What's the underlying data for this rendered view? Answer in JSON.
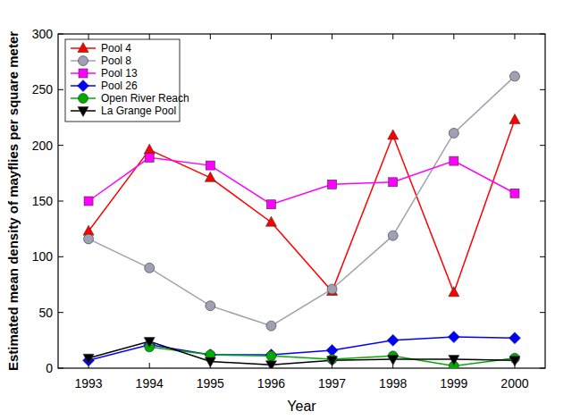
{
  "chart_data": {
    "type": "line",
    "x_label": "Year",
    "y_label": "Estimated mean density of mayflies per square meter",
    "x": [
      1993,
      1994,
      1995,
      1996,
      1997,
      1998,
      1999,
      2000
    ],
    "xlim": [
      1992.5,
      2000.5
    ],
    "xticks": [
      1993,
      1994,
      1995,
      1996,
      1997,
      1998,
      1999,
      2000
    ],
    "ylim": [
      0,
      300
    ],
    "yticks": [
      0,
      50,
      100,
      150,
      200,
      250,
      300
    ],
    "grid": false,
    "legend": "upper left",
    "series": [
      {
        "name": "Pool 4",
        "color": "#ff0000",
        "marker": "triangle",
        "values": [
          123,
          196,
          171,
          131,
          69,
          209,
          68,
          223
        ]
      },
      {
        "name": "Pool 8",
        "color": "#a0a0b4",
        "marker": "circle",
        "values": [
          116,
          90,
          56,
          38,
          71,
          119,
          211,
          262
        ]
      },
      {
        "name": "Pool 13",
        "color": "#ff00ff",
        "marker": "square",
        "values": [
          150,
          189,
          182,
          147,
          165,
          167,
          186,
          157
        ]
      },
      {
        "name": "Pool 26",
        "color": "#0000ff",
        "marker": "diamond",
        "values": [
          7,
          21,
          12,
          12,
          16,
          25,
          28,
          27
        ]
      },
      {
        "name": "Open River Reach",
        "color": "#00aa00",
        "marker": "circle",
        "values": [
          null,
          19,
          12,
          11,
          8,
          11,
          2,
          9
        ]
      },
      {
        "name": "La Grange Pool",
        "color": "#000000",
        "marker": "triangle-down",
        "values": [
          9,
          24,
          6,
          3,
          7,
          8,
          8,
          7
        ]
      }
    ]
  }
}
